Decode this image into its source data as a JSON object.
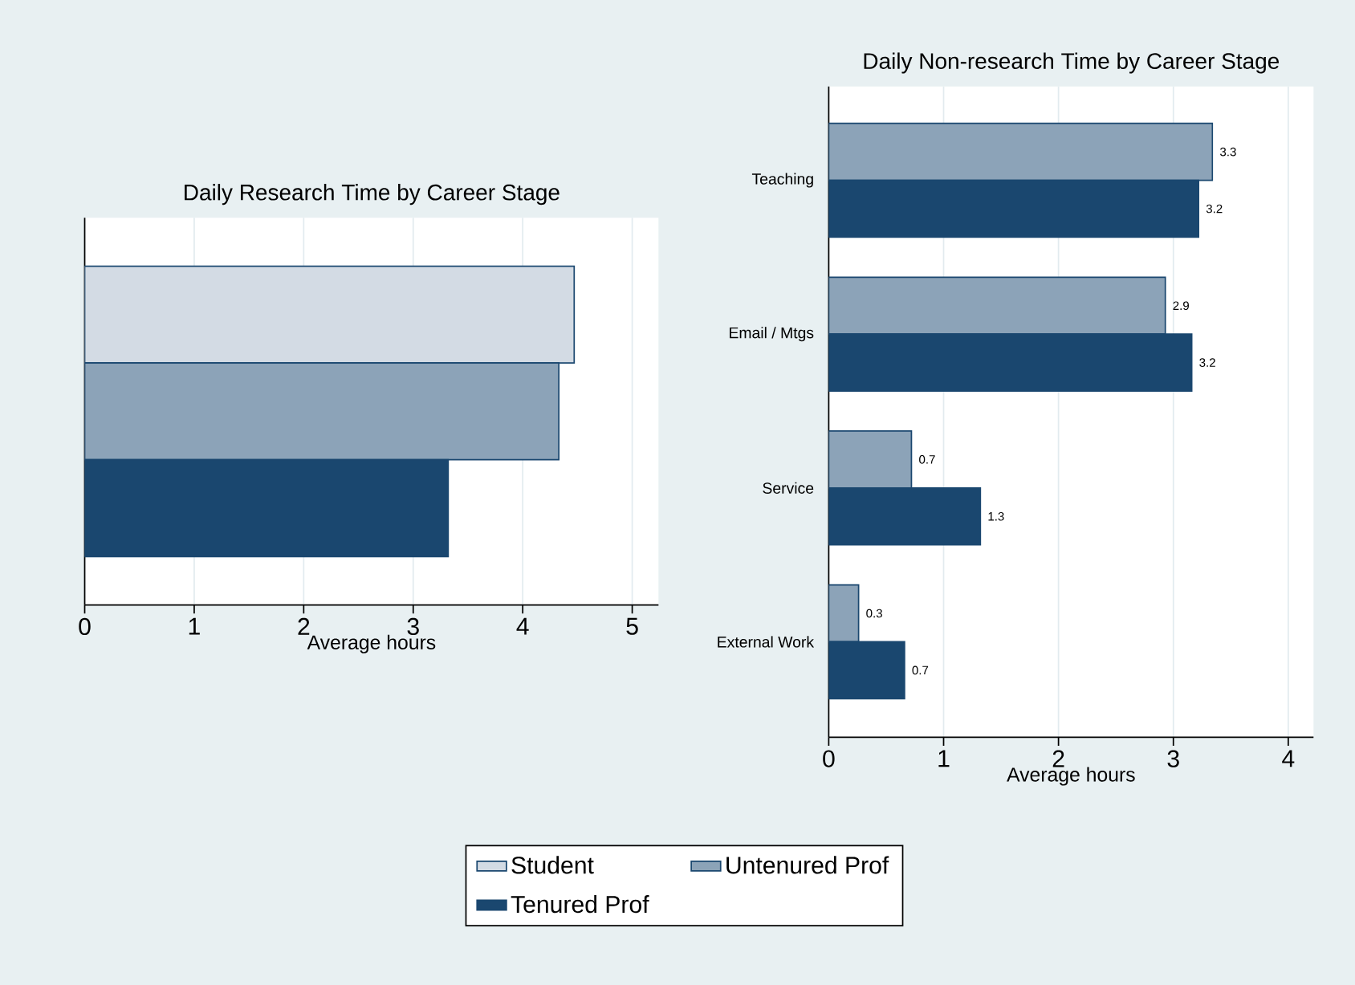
{
  "chart_data": [
    {
      "type": "bar",
      "orientation": "horizontal",
      "title": "Daily Research Time by Career Stage",
      "xlabel": "Average hours",
      "categories": [
        null
      ],
      "xlim": [
        0,
        5.24
      ],
      "xticks": [
        0,
        1,
        2,
        3,
        4,
        5
      ],
      "grid": "x",
      "legend": "bottom",
      "series": [
        {
          "name": "Student",
          "color": "#d3dbe4",
          "values": [
            4.47
          ]
        },
        {
          "name": "Untenured Prof",
          "color": "#8ca3b8",
          "values": [
            4.33
          ]
        },
        {
          "name": "Tenured Prof",
          "color": "#1a476f",
          "values": [
            3.32
          ]
        }
      ]
    },
    {
      "type": "bar",
      "orientation": "horizontal",
      "title": "Daily Non-research Time by Career Stage",
      "xlabel": "Average hours",
      "categories": [
        "Teaching",
        "Email / Mtgs",
        "Service",
        "External Work"
      ],
      "xlim": [
        0,
        4.22
      ],
      "xticks": [
        0,
        1,
        2,
        3,
        4
      ],
      "grid": "x",
      "series": [
        {
          "color": "#8ca3b8",
          "values": [
            3.34,
            2.93,
            0.72,
            0.26
          ],
          "value_labels": [
            "3.3",
            "2.9",
            "0.7",
            "0.3"
          ]
        },
        {
          "color": "#1a476f",
          "values": [
            3.22,
            3.16,
            1.32,
            0.66
          ],
          "value_labels": [
            "3.2",
            "3.2",
            "1.3",
            "0.7"
          ]
        }
      ]
    }
  ]
}
